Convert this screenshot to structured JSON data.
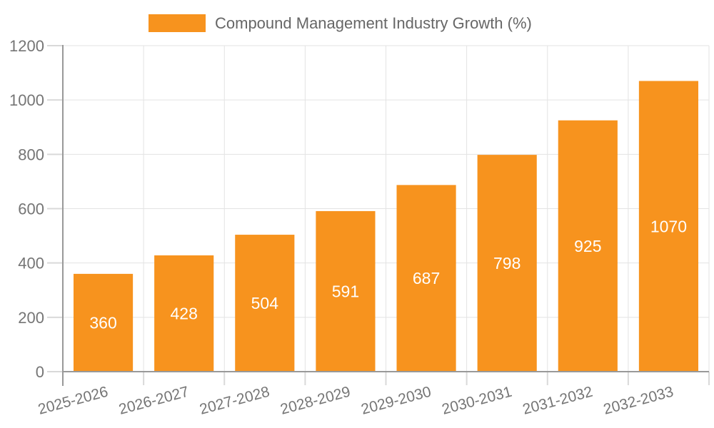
{
  "chart_data": {
    "type": "bar",
    "title": "Compound Management Industry Growth (%)",
    "categories": [
      "2025-2026",
      "2026-2027",
      "2027-2028",
      "2028-2029",
      "2029-2030",
      "2030-2031",
      "2031-2032",
      "2032-2033"
    ],
    "values": [
      360,
      428,
      504,
      591,
      687,
      798,
      925,
      1070
    ],
    "series": [
      {
        "name": "Compound Management Industry Growth (%)",
        "values": [
          360,
          428,
          504,
          591,
          687,
          798,
          925,
          1070
        ]
      }
    ],
    "xlabel": "",
    "ylabel": "",
    "ylim": [
      0,
      1200
    ],
    "ytick_interval": 200,
    "ytick_labels": [
      "0",
      "200",
      "400",
      "600",
      "800",
      "1000",
      "1200"
    ],
    "grid": true,
    "legend_position": "top-left",
    "value_labels_shown": true,
    "x_label_rotation_deg": -15,
    "colors": {
      "bar": "#F7931E",
      "grid": "#E3E3E3",
      "tick": "#D9D9D9",
      "axis": "#999999",
      "tick_label": "#757575",
      "value_label": "#FFFFFF",
      "legend_text": "#666666"
    }
  }
}
